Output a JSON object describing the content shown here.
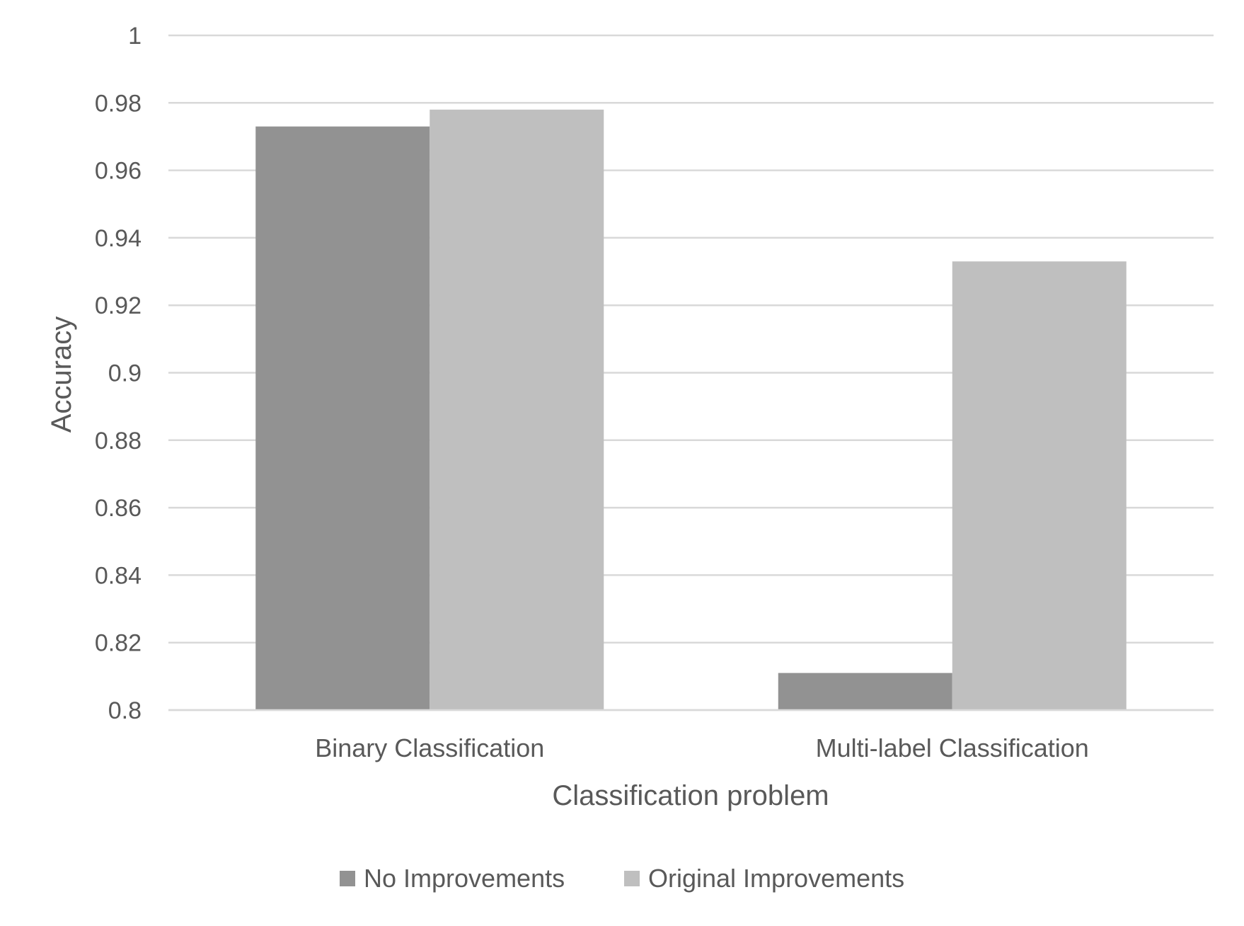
{
  "chart_data": {
    "type": "bar",
    "title": "",
    "xlabel": "Classification problem",
    "ylabel": "Accuracy",
    "ylim": [
      0.8,
      1.0
    ],
    "yticks": [
      "0.8",
      "0.82",
      "0.84",
      "0.86",
      "0.88",
      "0.9",
      "0.92",
      "0.94",
      "0.96",
      "0.98",
      "1"
    ],
    "categories": [
      "Binary Classification",
      "Multi-label Classification"
    ],
    "series": [
      {
        "name": "No Improvements",
        "values": [
          0.973,
          0.811
        ],
        "color": "#929292"
      },
      {
        "name": "Original Improvements",
        "values": [
          0.978,
          0.933
        ],
        "color": "#bfbfbf"
      }
    ],
    "grid": true,
    "legend_position": "bottom"
  }
}
